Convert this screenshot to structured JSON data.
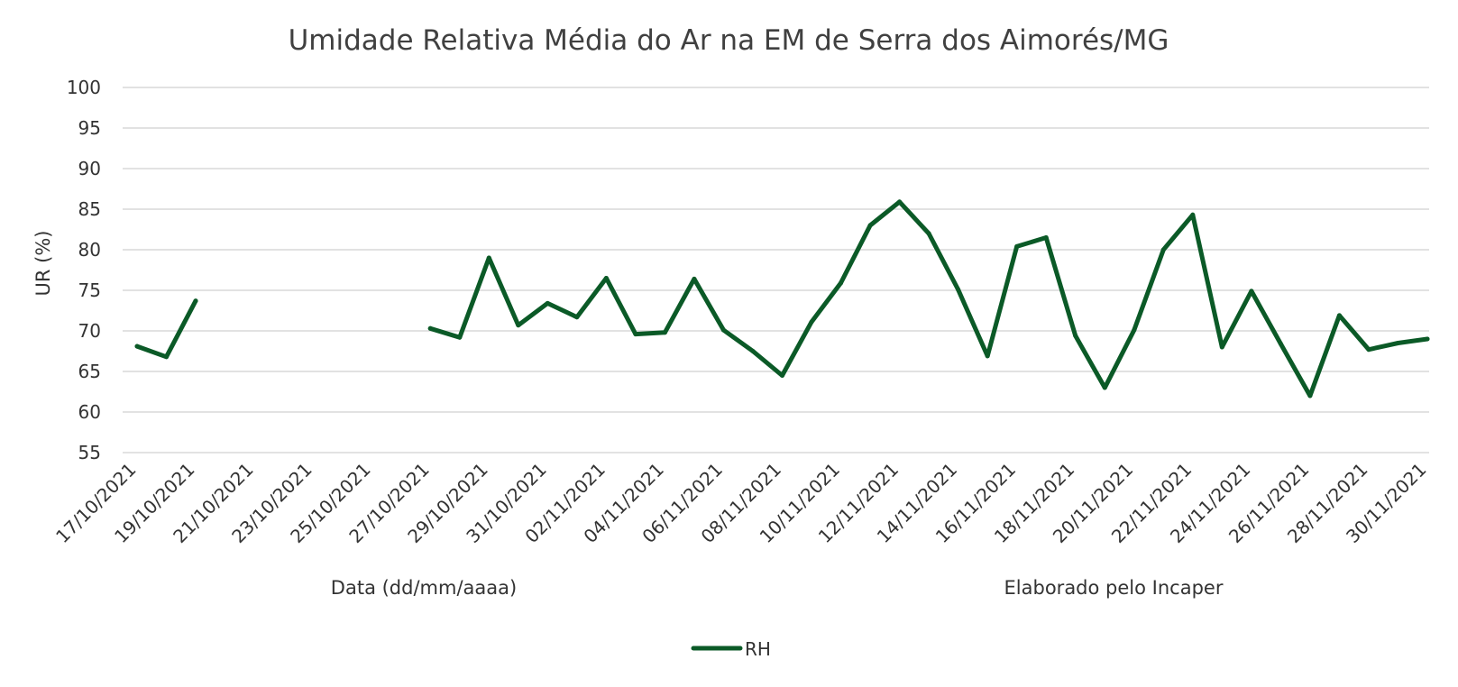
{
  "chart_data": {
    "type": "line",
    "title": "Umidade Relativa Média do Ar na EM de Serra dos Aimorés/MG",
    "xlabel": "Data (dd/mm/aaaa)",
    "ylabel": "UR (%)",
    "note": "Elaborado pelo Incaper",
    "ylim": [
      55,
      100
    ],
    "y_ticks": [
      55,
      60,
      65,
      70,
      75,
      80,
      85,
      90,
      95,
      100
    ],
    "grid": true,
    "legend_position": "bottom",
    "line_color": "#0b5a27",
    "x": [
      "17/10/2021",
      "18/10/2021",
      "19/10/2021",
      "20/10/2021",
      "21/10/2021",
      "22/10/2021",
      "23/10/2021",
      "24/10/2021",
      "25/10/2021",
      "26/10/2021",
      "27/10/2021",
      "28/10/2021",
      "29/10/2021",
      "30/10/2021",
      "31/10/2021",
      "01/11/2021",
      "02/11/2021",
      "03/11/2021",
      "04/11/2021",
      "05/11/2021",
      "06/11/2021",
      "07/11/2021",
      "08/11/2021",
      "09/11/2021",
      "10/11/2021",
      "11/11/2021",
      "12/11/2021",
      "13/11/2021",
      "14/11/2021",
      "15/11/2021",
      "16/11/2021",
      "17/11/2021",
      "18/11/2021",
      "19/11/2021",
      "20/11/2021",
      "21/11/2021",
      "22/11/2021",
      "23/11/2021",
      "24/11/2021",
      "25/11/2021",
      "26/11/2021",
      "27/11/2021",
      "28/11/2021",
      "29/11/2021",
      "30/11/2021"
    ],
    "x_tick_labels": [
      "17/10/2021",
      "19/10/2021",
      "21/10/2021",
      "23/10/2021",
      "25/10/2021",
      "27/10/2021",
      "29/10/2021",
      "31/10/2021",
      "02/11/2021",
      "04/11/2021",
      "06/11/2021",
      "08/11/2021",
      "10/11/2021",
      "12/11/2021",
      "14/11/2021",
      "16/11/2021",
      "18/11/2021",
      "20/11/2021",
      "22/11/2021",
      "24/11/2021",
      "26/11/2021",
      "28/11/2021",
      "30/11/2021"
    ],
    "series": [
      {
        "name": "RH",
        "values": [
          68.1,
          66.8,
          73.7,
          null,
          null,
          null,
          null,
          null,
          null,
          null,
          70.3,
          69.2,
          79.0,
          70.7,
          73.4,
          71.7,
          76.5,
          69.6,
          69.8,
          76.4,
          70.1,
          67.5,
          64.5,
          71.1,
          75.9,
          83.0,
          85.9,
          82.0,
          75.1,
          66.9,
          80.4,
          81.5,
          69.4,
          63.0,
          70.1,
          80.0,
          84.3,
          68.0,
          74.9,
          68.4,
          62.0,
          71.9,
          67.7,
          68.5,
          69.0
        ]
      }
    ]
  }
}
